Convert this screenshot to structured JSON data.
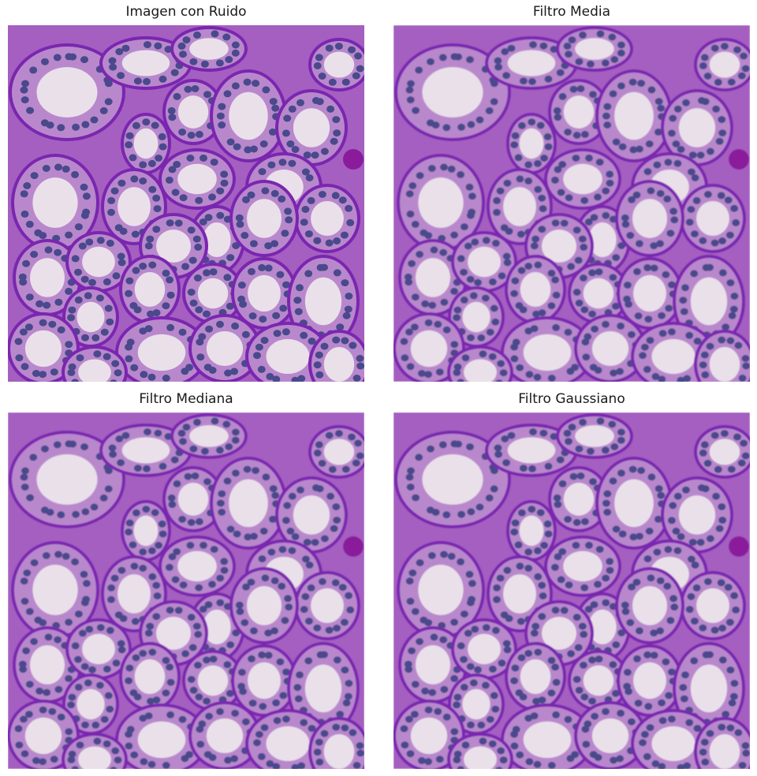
{
  "panels": [
    {
      "title": "Imagen con Ruido",
      "filter": "noisy"
    },
    {
      "title": "Filtro Media",
      "filter": "mean"
    },
    {
      "title": "Filtro Mediana",
      "filter": "median"
    },
    {
      "title": "Filtro Gaussiano",
      "filter": "gaussian"
    }
  ],
  "colors": {
    "background": "#e6d9e6",
    "cytoplasm": "#a45fc0",
    "membrane": "#7a25b0",
    "nucleus": "#4a4a8c",
    "lumen": "#eae0ea",
    "dark_spot": "#8a1a9c"
  }
}
